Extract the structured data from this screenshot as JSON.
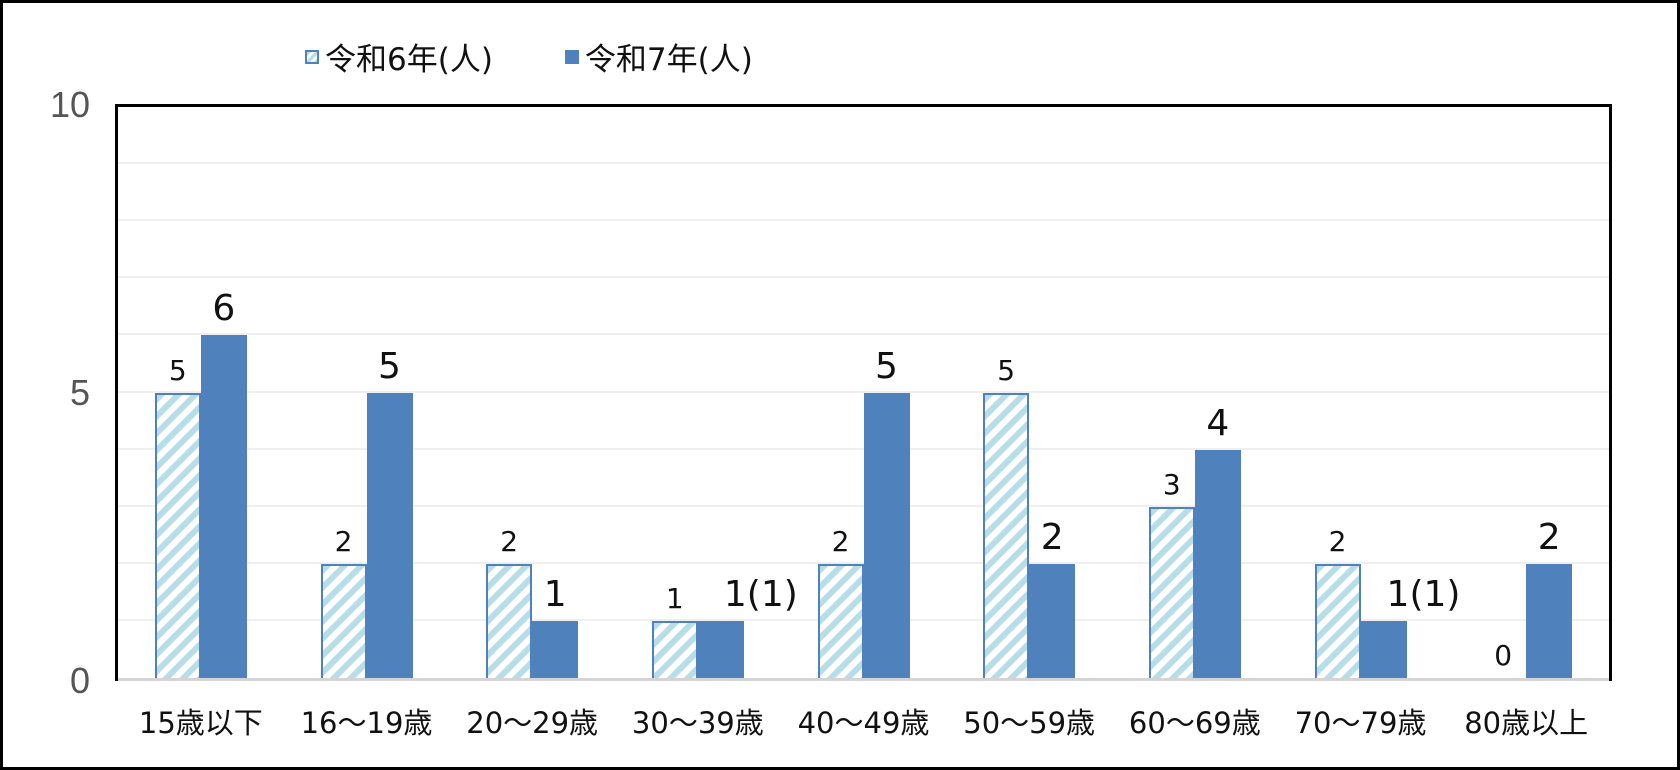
{
  "chart_data": {
    "type": "bar",
    "title": "",
    "xlabel": "",
    "ylabel": "",
    "ylim": [
      0,
      10
    ],
    "yticks": [
      "0",
      "5",
      "10"
    ],
    "grid": true,
    "legend_position": "top",
    "categories": [
      "15歳以下",
      "16～19歳",
      "20～29歳",
      "30～39歳",
      "40～49歳",
      "50～59歳",
      "60～69歳",
      "70～79歳",
      "80歳以上"
    ],
    "series": [
      {
        "name": "令和6年(人)",
        "color": "#b7dde8",
        "border": "#4f81bd",
        "pattern": "diagonal-hatch",
        "values": [
          5,
          2,
          2,
          1,
          2,
          5,
          3,
          2,
          0
        ],
        "labels": [
          "5",
          "2",
          "2",
          "1",
          "2",
          "5",
          "3",
          "2",
          "0"
        ]
      },
      {
        "name": "令和7年(人)",
        "color": "#4f81bd",
        "values": [
          6,
          5,
          1,
          1,
          5,
          2,
          4,
          1,
          2
        ],
        "labels": [
          "6",
          "5",
          "1",
          "1(1)",
          "5",
          "2",
          "4",
          "1(1)",
          "2"
        ]
      }
    ]
  },
  "legend": {
    "items": [
      {
        "label": "令和6年(人)"
      },
      {
        "label": "令和7年(人)"
      }
    ]
  },
  "axis": {
    "y_ticks": [
      "10",
      "5",
      "0"
    ]
  }
}
